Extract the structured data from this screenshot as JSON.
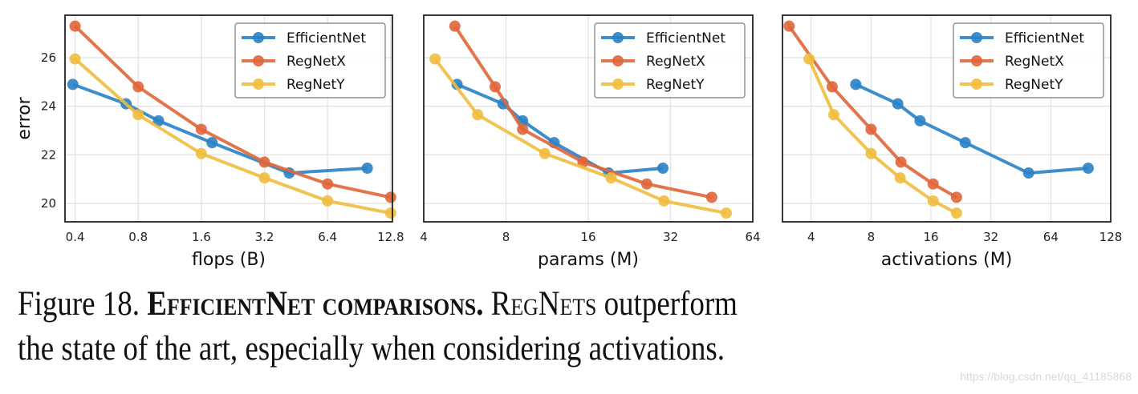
{
  "colors": {
    "EfficientNet": "#2a82c6",
    "RegNetX": "#e0663a",
    "RegNetY": "#f0bd3e",
    "grid": "#e3e3e3",
    "axes": "#222222"
  },
  "chart_data": [
    {
      "type": "line",
      "xscale": "log2",
      "xlabel": "flops (B)",
      "ylabel": "error",
      "xlim": [
        0.358,
        13.05
      ],
      "ylim": [
        19.24,
        27.75
      ],
      "xticks": [
        0.4,
        0.8,
        1.6,
        3.2,
        6.4,
        12.8
      ],
      "xtick_labels": [
        "0.4",
        "0.8",
        "1.6",
        "3.2",
        "6.4",
        "12.8"
      ],
      "yticks": [
        20,
        22,
        24,
        26
      ],
      "ytick_labels": [
        "20",
        "22",
        "24",
        "26"
      ],
      "grid": true,
      "legend_position": "top-right",
      "series": [
        {
          "name": "EfficientNet",
          "x": [
            0.39,
            0.7,
            1.0,
            1.8,
            4.2,
            9.9
          ],
          "y": [
            24.9,
            24.1,
            23.4,
            22.5,
            21.25,
            21.45
          ]
        },
        {
          "name": "RegNetX",
          "x": [
            0.4,
            0.8,
            1.6,
            3.2,
            6.4,
            12.8
          ],
          "y": [
            27.3,
            24.8,
            23.05,
            21.7,
            20.8,
            20.25
          ]
        },
        {
          "name": "RegNetY",
          "x": [
            0.4,
            0.8,
            1.6,
            3.2,
            6.4,
            12.8
          ],
          "y": [
            25.95,
            23.65,
            22.05,
            21.05,
            20.1,
            19.6
          ]
        }
      ]
    },
    {
      "type": "line",
      "xscale": "log2",
      "xlabel": "params (M)",
      "ylabel": "",
      "xlim": [
        4,
        64
      ],
      "ylim": [
        19.24,
        27.75
      ],
      "xticks": [
        4,
        8,
        16,
        32,
        64
      ],
      "xtick_labels": [
        "4",
        "8",
        "16",
        "32",
        "64"
      ],
      "yticks": [
        20,
        22,
        24,
        26
      ],
      "ytick_labels": [],
      "grid": true,
      "legend_position": "top-right",
      "series": [
        {
          "name": "EfficientNet",
          "x": [
            5.3,
            7.8,
            9.2,
            12,
            19,
            30
          ],
          "y": [
            24.9,
            24.1,
            23.4,
            22.5,
            21.25,
            21.45
          ]
        },
        {
          "name": "RegNetX",
          "x": [
            5.2,
            7.3,
            9.2,
            15.3,
            26.2,
            45.3
          ],
          "y": [
            27.3,
            24.8,
            23.05,
            21.7,
            20.8,
            20.25
          ]
        },
        {
          "name": "RegNetY",
          "x": [
            4.4,
            6.3,
            11.1,
            19.4,
            30.3,
            51.2
          ],
          "y": [
            25.95,
            23.65,
            22.05,
            21.05,
            20.1,
            19.6
          ]
        }
      ]
    },
    {
      "type": "line",
      "xscale": "log2",
      "xlabel": "activations (M)",
      "ylabel": "",
      "xlim": [
        2.87,
        128
      ],
      "ylim": [
        19.24,
        27.75
      ],
      "xticks": [
        4,
        8,
        16,
        32,
        64,
        128
      ],
      "xtick_labels": [
        "4",
        "8",
        "16",
        "32",
        "64",
        "128"
      ],
      "yticks": [
        20,
        22,
        24,
        26
      ],
      "ytick_labels": [],
      "grid": true,
      "legend_position": "top-right",
      "series": [
        {
          "name": "EfficientNet",
          "x": [
            6.7,
            10.9,
            14.1,
            23.8,
            49.5,
            98.6
          ],
          "y": [
            24.9,
            24.1,
            23.4,
            22.5,
            21.25,
            21.45
          ]
        },
        {
          "name": "RegNetX",
          "x": [
            3.1,
            5.1,
            8.0,
            11.3,
            16.4,
            21.5
          ],
          "y": [
            27.3,
            24.8,
            23.05,
            21.7,
            20.8,
            20.25
          ]
        },
        {
          "name": "RegNetY",
          "x": [
            3.9,
            5.2,
            8.0,
            11.2,
            16.4,
            21.5
          ],
          "y": [
            25.95,
            23.65,
            22.05,
            21.05,
            20.1,
            19.6
          ]
        }
      ]
    }
  ],
  "caption": {
    "figure_label": "Figure 18.",
    "bold_title": "EfficientNet comparisons.",
    "body_lead": "RegNets",
    "body_line1_rest": " outperform",
    "body_line2": "the state of the art, especially when considering activations."
  },
  "watermark": "https://blog.csdn.net/qq_41185868"
}
